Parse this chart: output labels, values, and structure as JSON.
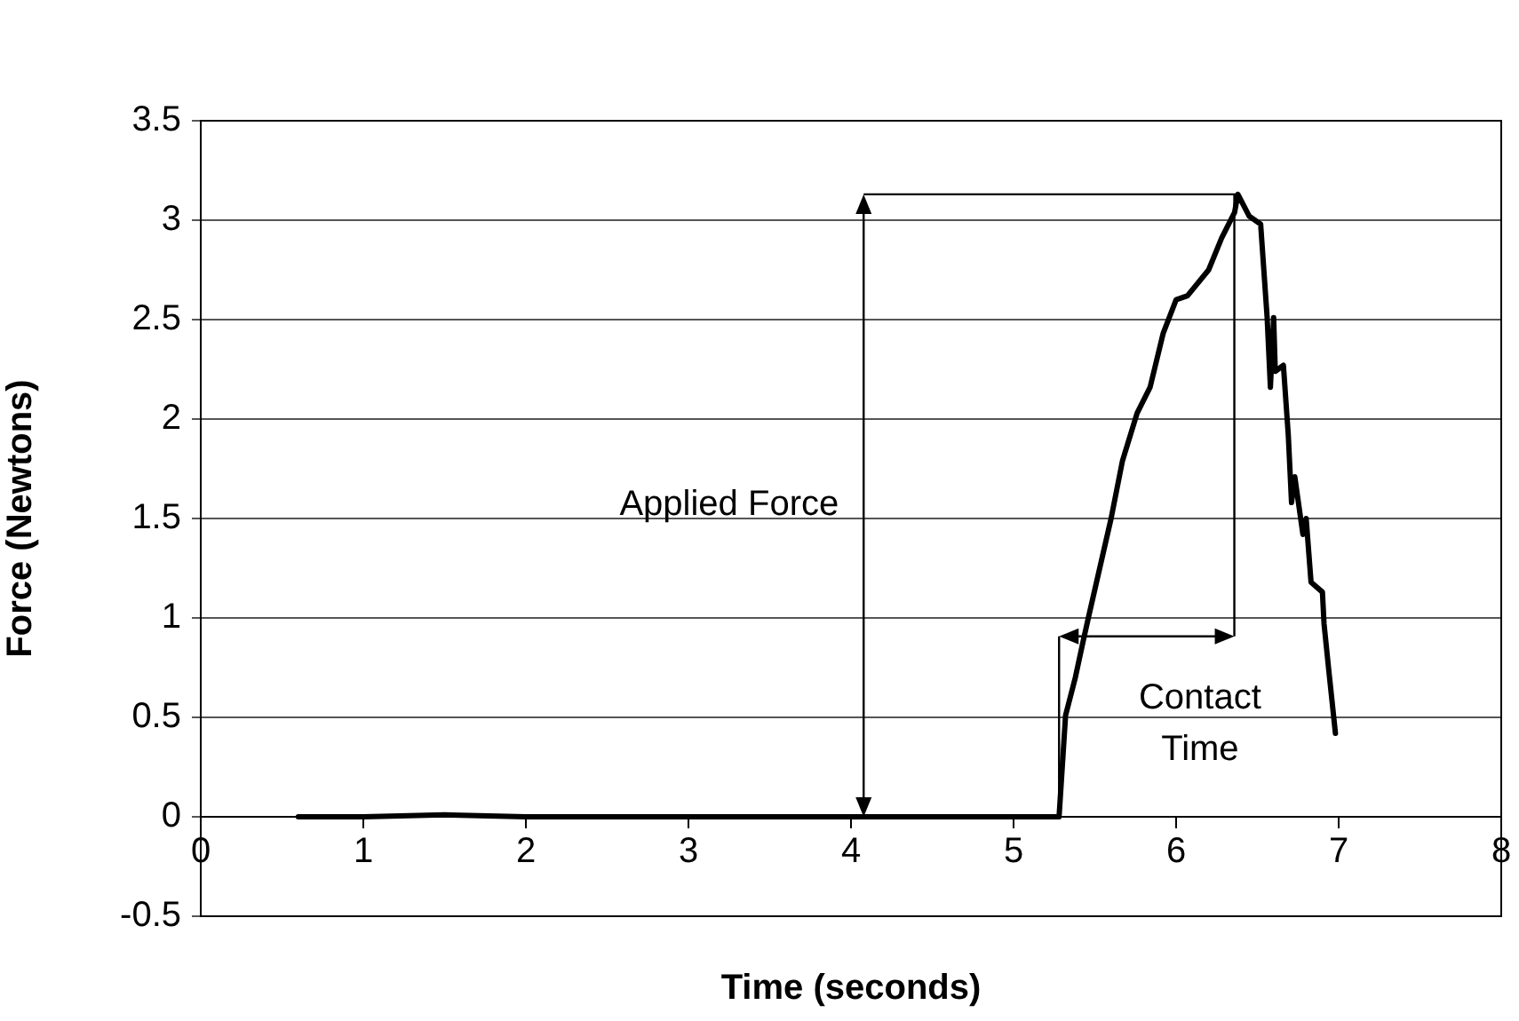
{
  "chart_data": {
    "type": "line",
    "xlabel": "Time (seconds)",
    "ylabel": "Force (Newtons)",
    "xlim": [
      0,
      8
    ],
    "xticks": [
      0,
      1,
      2,
      3,
      4,
      5,
      6,
      7,
      8
    ],
    "ylim": [
      -0.5,
      3.5
    ],
    "yticks": [
      -0.5,
      0,
      0.5,
      1,
      1.5,
      2,
      2.5,
      3,
      3.5
    ],
    "grid": "y",
    "legend": false,
    "marker": "none",
    "line_style": "solid",
    "annotations": [
      "Applied Force",
      "Contact Time"
    ],
    "series": [
      {
        "color": "#000000",
        "x": [
          0.6,
          1.0,
          1.5,
          2.0,
          2.5,
          3.0,
          3.5,
          4.0,
          4.5,
          5.0,
          5.28,
          5.32,
          5.38,
          5.43,
          5.46,
          5.6,
          5.67,
          5.76,
          5.84,
          5.92,
          6.0,
          6.07,
          6.2,
          6.28,
          6.36,
          6.38,
          6.45,
          6.52,
          6.56,
          6.58,
          6.6,
          6.61,
          6.66,
          6.69,
          6.71,
          6.73,
          6.78,
          6.8,
          6.83,
          6.9,
          6.91,
          6.94,
          6.98
        ],
        "values": [
          0,
          0,
          0.01,
          0,
          0,
          0,
          0,
          0,
          0,
          0,
          0,
          0.51,
          0.7,
          0.89,
          1.0,
          1.5,
          1.79,
          2.03,
          2.16,
          2.43,
          2.6,
          2.62,
          2.75,
          2.91,
          3.04,
          3.13,
          3.02,
          2.98,
          2.51,
          2.16,
          2.51,
          2.24,
          2.27,
          1.92,
          1.58,
          1.71,
          1.42,
          1.5,
          1.18,
          1.13,
          0.97,
          0.73,
          0.42
        ]
      }
    ]
  }
}
